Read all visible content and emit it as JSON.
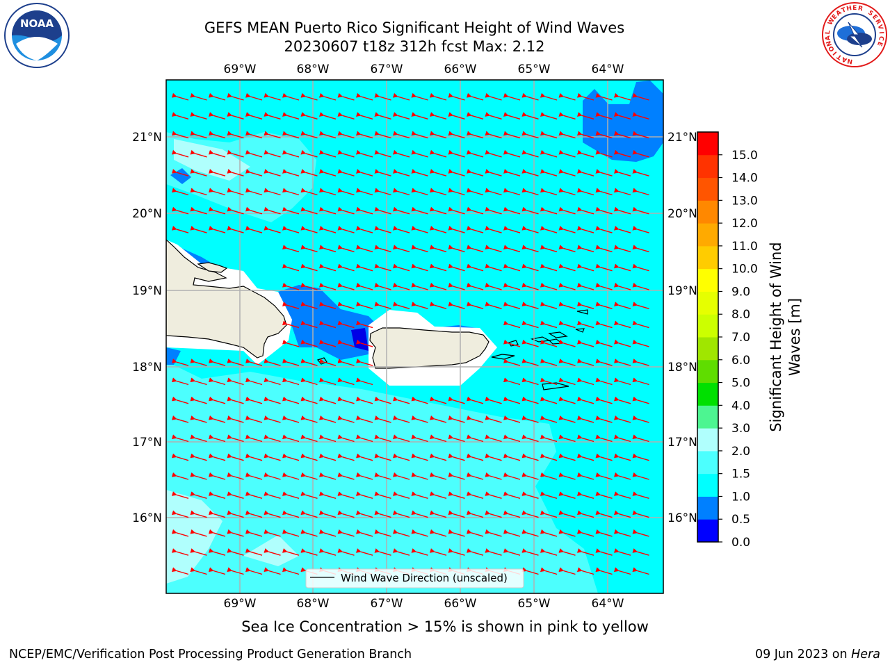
{
  "header": {
    "title": "GEFS MEAN Puerto Rico Significant Height of Wind Waves",
    "subtitle": "20230607 t18z 312h fcst   Max: 2.12"
  },
  "map": {
    "lon_labels": [
      "69°W",
      "68°W",
      "67°W",
      "66°W",
      "65°W",
      "64°W"
    ],
    "lat_labels": [
      "21°N",
      "20°N",
      "19°N",
      "18°N",
      "17°N",
      "16°N"
    ],
    "legend_label": "Wind Wave Direction (unscaled)",
    "colors": {
      "sea_high": "#00ffff",
      "sea_mid": "#4cfffe",
      "sea_low": "#b0fffd",
      "shallow_blue": "#0080ff",
      "deep_blue": "#0000e6",
      "land": "#efedde",
      "vector": "#ff0000"
    }
  },
  "colorbar": {
    "label_line1": "Significant Height of Wind",
    "label_line2": "Waves [m]",
    "ticks": [
      "15.0",
      "14.0",
      "13.0",
      "12.0",
      "11.0",
      "10.0",
      "9.0",
      "8.0",
      "7.0",
      "6.0",
      "5.0",
      "4.0",
      "3.0",
      "2.0",
      "1.5",
      "1.0",
      "0.5",
      "0.0"
    ],
    "colors": [
      "#0000ff",
      "#0080ff",
      "#00ffff",
      "#4cfffe",
      "#b0fffd",
      "#4df591",
      "#00e000",
      "#5fdd00",
      "#a0e600",
      "#ccff00",
      "#e6ff00",
      "#ffff00",
      "#ffcc00",
      "#ffaa00",
      "#ff8800",
      "#ff5500",
      "#ff3300",
      "#ff0000"
    ]
  },
  "notes": {
    "sea_ice": "Sea Ice Concentration > 15% is shown in pink to yellow"
  },
  "footer": {
    "left": "NCEP/EMC/Verification Post Processing Product Generation Branch",
    "date": "09 Jun 2023 on ",
    "host": "Hera"
  },
  "logos": {
    "noaa_text": "NOAA",
    "nws_text": "NATIONAL WEATHER SERVICE"
  }
}
